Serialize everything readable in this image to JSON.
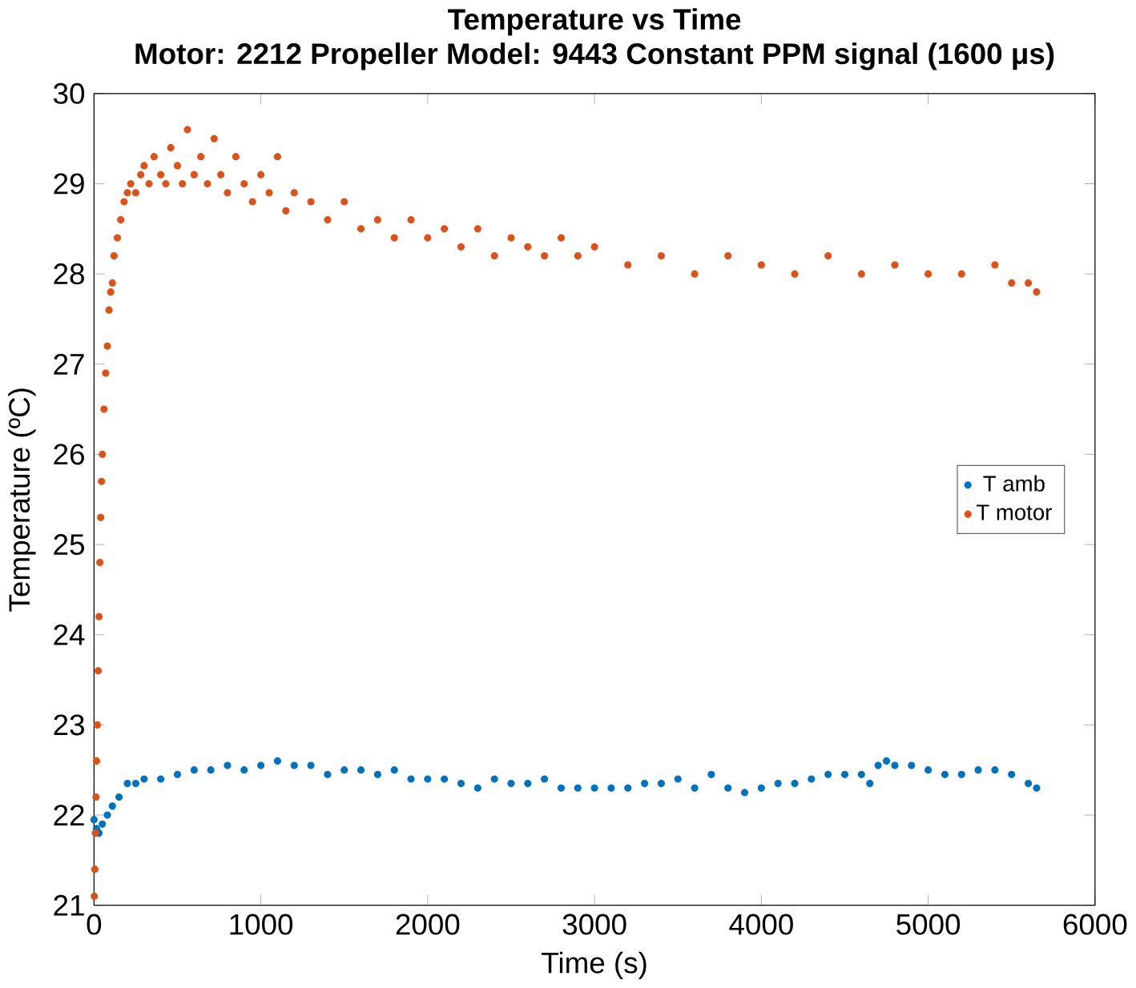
{
  "chart_data": {
    "type": "scatter",
    "title": "Temperature vs Time",
    "subtitle": "Motor: 2212  Propeller Model: 9443  Constant PPM signal (1600 μs)",
    "xlabel": "Time (s)",
    "ylabel": "Temperature (ºC)",
    "xlim": [
      0,
      6000
    ],
    "ylim": [
      21,
      30
    ],
    "xticks": [
      0,
      1000,
      2000,
      3000,
      4000,
      5000,
      6000
    ],
    "yticks": [
      21,
      22,
      23,
      24,
      25,
      26,
      27,
      28,
      29,
      30
    ],
    "legend": "right",
    "grid": false,
    "series": [
      {
        "name": "T amb",
        "color": "#0072bd",
        "x": [
          0,
          15,
          30,
          50,
          80,
          110,
          150,
          200,
          250,
          300,
          400,
          500,
          600,
          700,
          800,
          900,
          1000,
          1100,
          1200,
          1300,
          1400,
          1500,
          1600,
          1700,
          1800,
          1900,
          2000,
          2100,
          2200,
          2300,
          2400,
          2500,
          2600,
          2700,
          2800,
          2900,
          3000,
          3100,
          3200,
          3300,
          3400,
          3500,
          3600,
          3700,
          3800,
          3900,
          4000,
          4100,
          4200,
          4300,
          4400,
          4500,
          4600,
          4650,
          4700,
          4750,
          4800,
          4900,
          5000,
          5100,
          5200,
          5300,
          5400,
          5500,
          5600,
          5650
        ],
        "values": [
          21.95,
          21.85,
          21.8,
          21.9,
          22.0,
          22.1,
          22.2,
          22.35,
          22.35,
          22.4,
          22.4,
          22.45,
          22.5,
          22.5,
          22.55,
          22.5,
          22.55,
          22.6,
          22.55,
          22.55,
          22.45,
          22.5,
          22.5,
          22.45,
          22.5,
          22.4,
          22.4,
          22.4,
          22.35,
          22.3,
          22.4,
          22.35,
          22.35,
          22.4,
          22.3,
          22.3,
          22.3,
          22.3,
          22.3,
          22.35,
          22.35,
          22.4,
          22.3,
          22.45,
          22.3,
          22.25,
          22.3,
          22.35,
          22.35,
          22.4,
          22.45,
          22.45,
          22.45,
          22.35,
          22.55,
          22.6,
          22.55,
          22.55,
          22.5,
          22.45,
          22.45,
          22.5,
          22.5,
          22.45,
          22.35,
          22.3
        ]
      },
      {
        "name": "T motor",
        "color": "#d95319",
        "x": [
          2,
          5,
          8,
          12,
          15,
          20,
          25,
          30,
          35,
          40,
          45,
          50,
          60,
          70,
          80,
          90,
          100,
          110,
          120,
          140,
          160,
          180,
          200,
          220,
          250,
          280,
          300,
          330,
          360,
          400,
          430,
          460,
          500,
          530,
          560,
          600,
          640,
          680,
          720,
          760,
          800,
          850,
          900,
          950,
          1000,
          1050,
          1100,
          1150,
          1200,
          1300,
          1400,
          1500,
          1600,
          1700,
          1800,
          1900,
          2000,
          2100,
          2200,
          2300,
          2400,
          2500,
          2600,
          2700,
          2800,
          2900,
          3000,
          3200,
          3400,
          3600,
          3800,
          4000,
          4200,
          4400,
          4600,
          4800,
          5000,
          5200,
          5400,
          5500,
          5600,
          5650
        ],
        "values": [
          21.1,
          21.4,
          21.8,
          22.2,
          22.6,
          23.0,
          23.6,
          24.2,
          24.8,
          25.3,
          25.7,
          26.0,
          26.5,
          26.9,
          27.2,
          27.6,
          27.8,
          27.9,
          28.2,
          28.4,
          28.6,
          28.8,
          28.9,
          29.0,
          28.9,
          29.1,
          29.2,
          29.0,
          29.3,
          29.1,
          29.0,
          29.4,
          29.2,
          29.0,
          29.6,
          29.1,
          29.3,
          29.0,
          29.5,
          29.1,
          28.9,
          29.3,
          29.0,
          28.8,
          29.1,
          28.9,
          29.3,
          28.7,
          28.9,
          28.8,
          28.6,
          28.8,
          28.5,
          28.6,
          28.4,
          28.6,
          28.4,
          28.5,
          28.3,
          28.5,
          28.2,
          28.4,
          28.3,
          28.2,
          28.4,
          28.2,
          28.3,
          28.1,
          28.2,
          28.0,
          28.2,
          28.1,
          28.0,
          28.2,
          28.0,
          28.1,
          28.0,
          28.0,
          28.1,
          27.9,
          27.9,
          27.8
        ]
      }
    ]
  }
}
